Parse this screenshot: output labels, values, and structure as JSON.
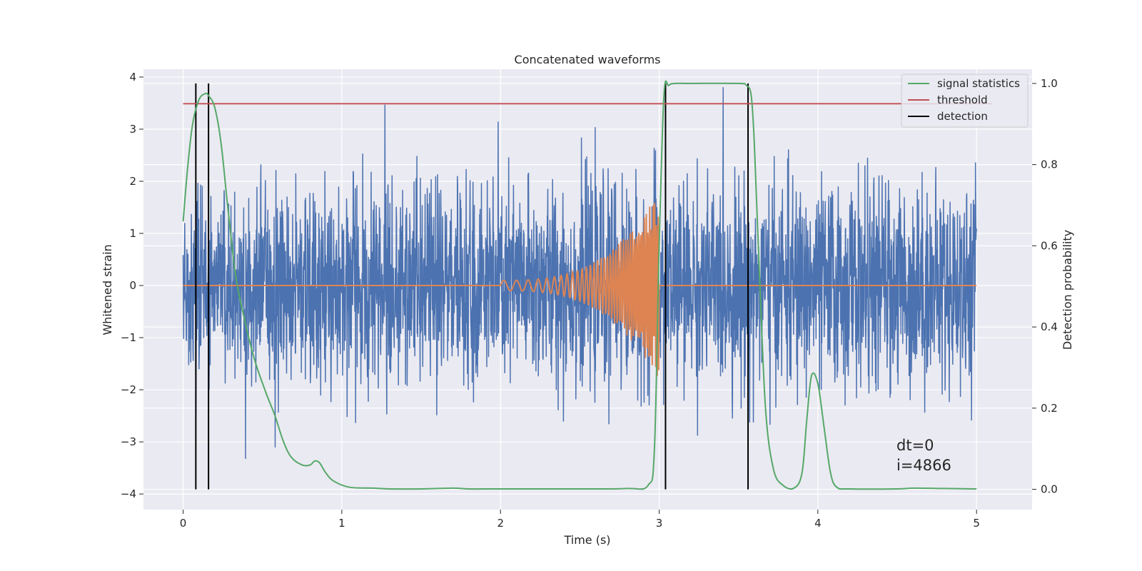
{
  "chart_data": {
    "type": "line",
    "title": "Concatenated waveforms",
    "xlabel": "Time (s)",
    "ylabel": "Whitened strain",
    "ylabel_right": "Detection probability",
    "xlim": [
      -0.25,
      5.35
    ],
    "ylim": [
      -4.3,
      4.15
    ],
    "ylim_right": [
      -0.05,
      1.035
    ],
    "x_ticks": [
      0,
      1,
      2,
      3,
      4,
      5
    ],
    "x_tick_labels": [
      "0",
      "1",
      "2",
      "3",
      "4",
      "5"
    ],
    "y_ticks": [
      -4,
      -3,
      -2,
      -1,
      0,
      1,
      2,
      3,
      4
    ],
    "y_tick_labels": [
      "−4",
      "−3",
      "−2",
      "−1",
      "0",
      "1",
      "2",
      "3",
      "4"
    ],
    "y_right_ticks": [
      0,
      0.2,
      0.4,
      0.6,
      0.8,
      1.0
    ],
    "y_right_tick_labels": [
      "0.0",
      "0.2",
      "0.4",
      "0.6",
      "0.8",
      "1.0"
    ],
    "grid": true,
    "legend_position": "top-right",
    "series": [
      {
        "name": "signal statistics",
        "axis": "right",
        "color": "#55a868",
        "x": [
          0,
          0.03,
          0.06,
          0.1,
          0.14,
          0.16,
          0.2,
          0.24,
          0.28,
          0.33,
          0.38,
          0.45,
          0.52,
          0.58,
          0.63,
          0.68,
          0.75,
          0.8,
          0.83,
          0.86,
          0.9,
          0.95,
          1.05,
          1.2,
          1.3,
          1.5,
          1.7,
          1.8,
          2.0,
          2.5,
          2.8,
          2.93,
          2.97,
          3.0,
          3.03,
          3.06,
          3.1,
          3.2,
          3.5,
          3.55,
          3.58,
          3.6,
          3.63,
          3.67,
          3.72,
          3.78,
          3.85,
          3.9,
          3.93,
          3.96,
          4.0,
          4.04,
          4.08,
          4.12,
          4.2,
          4.5,
          4.6,
          4.8,
          5.0
        ],
        "y": [
          0.66,
          0.8,
          0.9,
          0.96,
          0.975,
          0.97,
          0.94,
          0.85,
          0.7,
          0.53,
          0.43,
          0.32,
          0.24,
          0.18,
          0.12,
          0.08,
          0.06,
          0.06,
          0.07,
          0.065,
          0.04,
          0.02,
          0.005,
          0.003,
          0.001,
          0.001,
          0.003,
          0.001,
          0.001,
          0.001,
          0.002,
          0.01,
          0.1,
          0.6,
          0.97,
          0.995,
          1.0,
          1.0,
          1.0,
          0.995,
          0.97,
          0.85,
          0.55,
          0.2,
          0.05,
          0.01,
          0.003,
          0.04,
          0.17,
          0.28,
          0.26,
          0.15,
          0.04,
          0.005,
          0.001,
          0.001,
          0.003,
          0.002,
          0.001
        ]
      },
      {
        "name": "threshold",
        "axis": "right",
        "color": "#c44e52",
        "x": [
          0,
          5.1
        ],
        "y": [
          0.95,
          0.95
        ]
      },
      {
        "name": "detection",
        "axis": "right",
        "color": "#000000",
        "x_positions": [
          0.08,
          0.16,
          3.04,
          3.56
        ],
        "y_range": [
          0,
          1
        ]
      },
      {
        "axis": "left",
        "color": "#4c72b0",
        "x_range": [
          0,
          5
        ],
        "y_range": [
          -4,
          3.8
        ],
        "description_values": "noisy whitened strain, mostly between -2.5 and 2.5"
      },
      {
        "axis": "left",
        "color": "#dd8452",
        "x_range": [
          0,
          5
        ],
        "chirp_start": 2.0,
        "chirp_end": 3.0,
        "peak_amplitude": 1.8
      }
    ],
    "annotations": [
      "dt=0",
      "i=4866"
    ]
  },
  "colors": {
    "plot_background": "#eaeaf2",
    "grid": "#ffffff",
    "text": "#262626"
  }
}
